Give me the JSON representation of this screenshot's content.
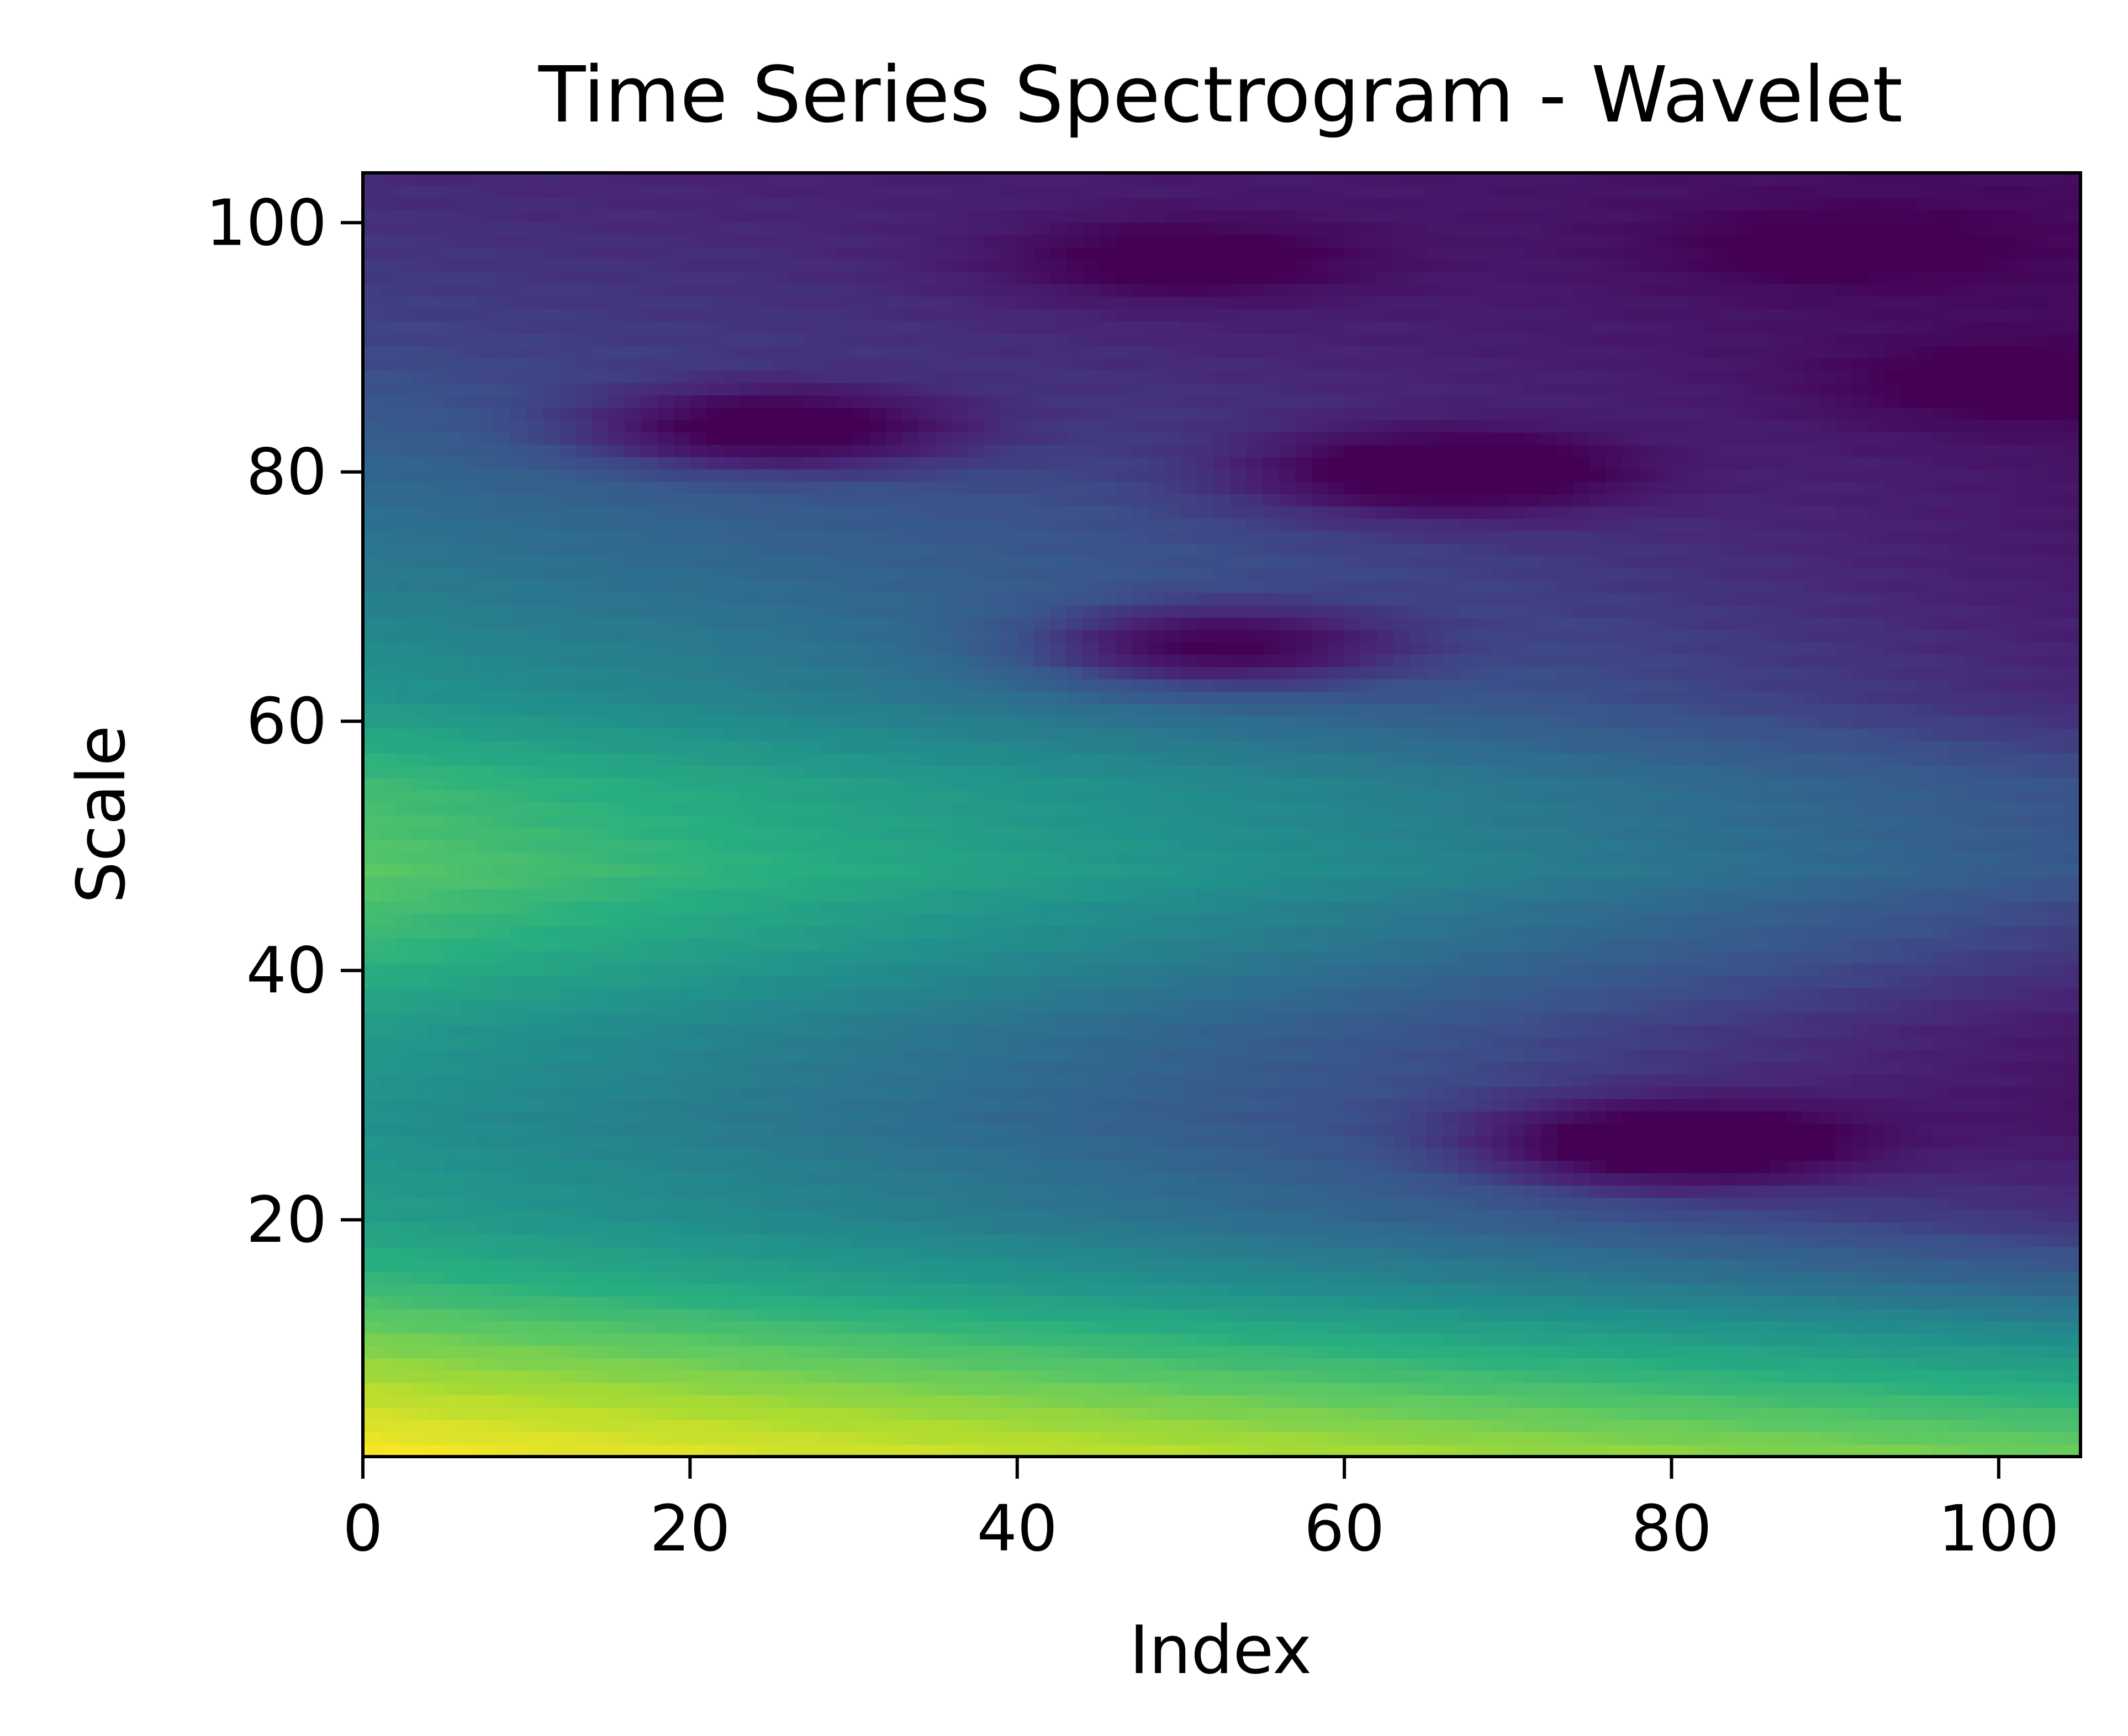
{
  "chart_data": {
    "type": "heatmap",
    "title": "Time Series Spectrogram - Wavelet",
    "xlabel": "Index",
    "ylabel": "Scale",
    "xlim": [
      0,
      105
    ],
    "ylim": [
      1,
      104
    ],
    "xticks": [
      0,
      20,
      40,
      60,
      80,
      100
    ],
    "yticks": [
      20,
      40,
      60,
      80,
      100
    ],
    "grid": false,
    "legend": "none",
    "colormap": "viridis",
    "color_range": [
      0,
      1
    ],
    "resolution": {
      "x": 105,
      "y": 104
    },
    "background_field": {
      "comment_free": true,
      "base_by_scale": [
        {
          "scale": 1,
          "value": 1.0
        },
        {
          "scale": 5,
          "value": 0.92
        },
        {
          "scale": 10,
          "value": 0.8
        },
        {
          "scale": 15,
          "value": 0.66
        },
        {
          "scale": 20,
          "value": 0.56
        },
        {
          "scale": 28,
          "value": 0.5
        },
        {
          "scale": 35,
          "value": 0.54
        },
        {
          "scale": 42,
          "value": 0.66
        },
        {
          "scale": 48,
          "value": 0.74
        },
        {
          "scale": 55,
          "value": 0.68
        },
        {
          "scale": 62,
          "value": 0.52
        },
        {
          "scale": 70,
          "value": 0.43
        },
        {
          "scale": 80,
          "value": 0.33
        },
        {
          "scale": 90,
          "value": 0.22
        },
        {
          "scale": 100,
          "value": 0.16
        },
        {
          "scale": 104,
          "value": 0.14
        }
      ],
      "index_decay_by_scale": [
        {
          "scale": 1,
          "value": 0.22
        },
        {
          "scale": 10,
          "value": 0.3
        },
        {
          "scale": 20,
          "value": 0.4
        },
        {
          "scale": 30,
          "value": 0.45
        },
        {
          "scale": 45,
          "value": 0.48
        },
        {
          "scale": 60,
          "value": 0.4
        },
        {
          "scale": 75,
          "value": 0.3
        },
        {
          "scale": 90,
          "value": 0.18
        },
        {
          "scale": 104,
          "value": 0.1
        }
      ]
    },
    "dark_regions": [
      {
        "index": 25,
        "scale": 83.5,
        "depth": 0.3
      },
      {
        "index": 52,
        "scale": 66,
        "depth": 0.3
      },
      {
        "index": 66,
        "scale": 80,
        "depth": 0.28
      },
      {
        "index": 80,
        "scale": 26,
        "depth": 0.32
      },
      {
        "index": 100,
        "scale": 87,
        "depth": 0.1
      },
      {
        "index": 50,
        "scale": 97,
        "depth": 0.16
      },
      {
        "index": 90,
        "scale": 98,
        "depth": 0.1
      }
    ]
  }
}
